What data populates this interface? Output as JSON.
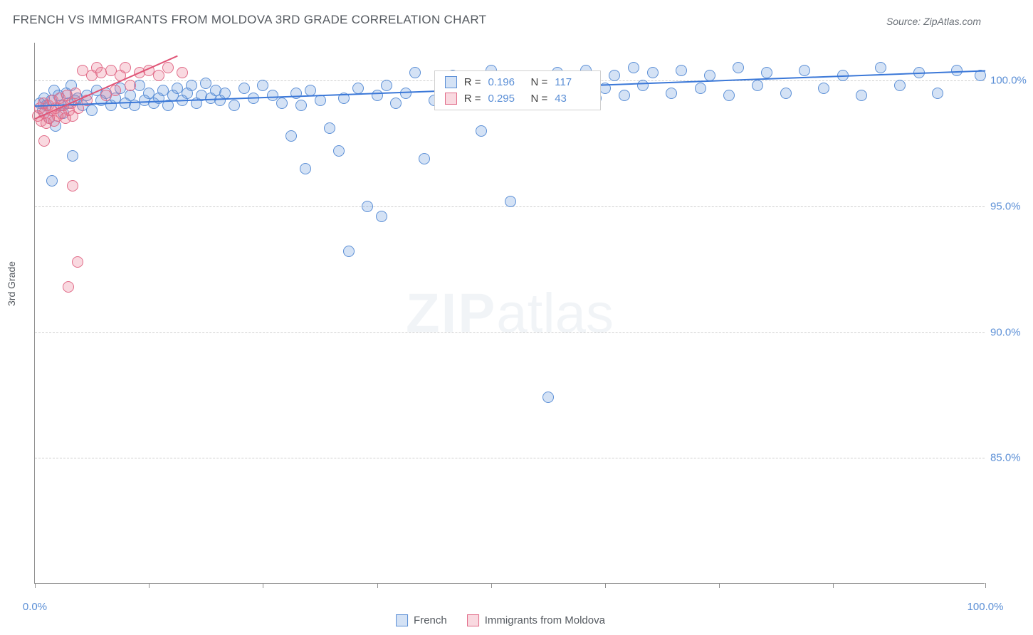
{
  "title": "FRENCH VS IMMIGRANTS FROM MOLDOVA 3RD GRADE CORRELATION CHART",
  "source_prefix": "Source: ",
  "source_name": "ZipAtlas.com",
  "ylabel": "3rd Grade",
  "watermark_bold": "ZIP",
  "watermark_rest": "atlas",
  "chart": {
    "type": "scatter",
    "xlim": [
      0,
      100
    ],
    "ylim": [
      80,
      101.5
    ],
    "yticks": [
      85.0,
      90.0,
      95.0,
      100.0
    ],
    "ytick_labels": [
      "85.0%",
      "90.0%",
      "95.0%",
      "100.0%"
    ],
    "xticks": [
      0,
      12,
      24,
      36,
      48,
      60,
      72,
      84,
      100
    ],
    "xtick_labels": {
      "0": "0.0%",
      "100": "100.0%"
    },
    "background_color": "#ffffff",
    "grid_color": "#cfcfcf",
    "axis_color": "#909090",
    "marker_radius": 8,
    "marker_stroke_width": 1.2,
    "series": [
      {
        "name": "French",
        "fill": "rgba(100,150,220,0.28)",
        "stroke": "#5b8fd6",
        "r_value": "0.196",
        "n_value": "117",
        "trend": {
          "x1": 0,
          "y1": 99.0,
          "x2": 100,
          "y2": 100.4,
          "color": "#3b78d8",
          "width": 2
        },
        "points": [
          [
            0.5,
            99.1
          ],
          [
            0.8,
            98.8
          ],
          [
            1.0,
            99.3
          ],
          [
            1.2,
            99.0
          ],
          [
            1.5,
            98.5
          ],
          [
            1.7,
            99.2
          ],
          [
            2.0,
            99.6
          ],
          [
            2.2,
            98.2
          ],
          [
            2.5,
            99.4
          ],
          [
            2.8,
            99.0
          ],
          [
            3.0,
            98.7
          ],
          [
            3.3,
            99.5
          ],
          [
            3.5,
            99.1
          ],
          [
            3.8,
            99.8
          ],
          [
            4.0,
            97.0
          ],
          [
            4.2,
            99.2
          ],
          [
            4.5,
            99.3
          ],
          [
            5.0,
            99.0
          ],
          [
            5.5,
            99.4
          ],
          [
            6.0,
            98.8
          ],
          [
            6.5,
            99.6
          ],
          [
            7.0,
            99.2
          ],
          [
            7.5,
            99.5
          ],
          [
            8.0,
            99.0
          ],
          [
            8.5,
            99.3
          ],
          [
            9.0,
            99.7
          ],
          [
            9.5,
            99.1
          ],
          [
            10.0,
            99.4
          ],
          [
            10.5,
            99.0
          ],
          [
            11.0,
            99.8
          ],
          [
            11.5,
            99.2
          ],
          [
            12.0,
            99.5
          ],
          [
            12.5,
            99.1
          ],
          [
            13.0,
            99.3
          ],
          [
            13.5,
            99.6
          ],
          [
            14.0,
            99.0
          ],
          [
            14.5,
            99.4
          ],
          [
            15.0,
            99.7
          ],
          [
            15.5,
            99.2
          ],
          [
            16.0,
            99.5
          ],
          [
            16.5,
            99.8
          ],
          [
            17.0,
            99.1
          ],
          [
            17.5,
            99.4
          ],
          [
            18.0,
            99.9
          ],
          [
            18.5,
            99.3
          ],
          [
            19.0,
            99.6
          ],
          [
            19.5,
            99.2
          ],
          [
            20.0,
            99.5
          ],
          [
            21.0,
            99.0
          ],
          [
            22.0,
            99.7
          ],
          [
            23.0,
            99.3
          ],
          [
            24.0,
            99.8
          ],
          [
            25.0,
            99.4
          ],
          [
            26.0,
            99.1
          ],
          [
            27.0,
            97.8
          ],
          [
            27.5,
            99.5
          ],
          [
            28.0,
            99.0
          ],
          [
            28.5,
            96.5
          ],
          [
            29.0,
            99.6
          ],
          [
            30.0,
            99.2
          ],
          [
            31.0,
            98.1
          ],
          [
            32.0,
            97.2
          ],
          [
            32.5,
            99.3
          ],
          [
            33.0,
            93.2
          ],
          [
            34.0,
            99.7
          ],
          [
            35.0,
            95.0
          ],
          [
            36.0,
            99.4
          ],
          [
            36.5,
            94.6
          ],
          [
            37.0,
            99.8
          ],
          [
            38.0,
            99.1
          ],
          [
            39.0,
            99.5
          ],
          [
            40.0,
            100.3
          ],
          [
            41.0,
            96.9
          ],
          [
            42.0,
            99.2
          ],
          [
            43.0,
            99.6
          ],
          [
            44.0,
            100.2
          ],
          [
            45.0,
            99.3
          ],
          [
            46.0,
            99.7
          ],
          [
            47.0,
            98.0
          ],
          [
            48.0,
            100.4
          ],
          [
            49.0,
            99.4
          ],
          [
            50.0,
            95.2
          ],
          [
            51.0,
            99.8
          ],
          [
            52.0,
            99.1
          ],
          [
            53.0,
            99.5
          ],
          [
            54.0,
            87.4
          ],
          [
            55.0,
            100.3
          ],
          [
            56.0,
            99.2
          ],
          [
            57.0,
            99.6
          ],
          [
            58.0,
            100.4
          ],
          [
            59.0,
            99.3
          ],
          [
            60.0,
            99.7
          ],
          [
            61.0,
            100.2
          ],
          [
            62.0,
            99.4
          ],
          [
            63.0,
            100.5
          ],
          [
            64.0,
            99.8
          ],
          [
            65.0,
            100.3
          ],
          [
            67.0,
            99.5
          ],
          [
            68.0,
            100.4
          ],
          [
            70.0,
            99.7
          ],
          [
            71.0,
            100.2
          ],
          [
            73.0,
            99.4
          ],
          [
            74.0,
            100.5
          ],
          [
            76.0,
            99.8
          ],
          [
            77.0,
            100.3
          ],
          [
            79.0,
            99.5
          ],
          [
            81.0,
            100.4
          ],
          [
            83.0,
            99.7
          ],
          [
            85.0,
            100.2
          ],
          [
            87.0,
            99.4
          ],
          [
            89.0,
            100.5
          ],
          [
            91.0,
            99.8
          ],
          [
            93.0,
            100.3
          ],
          [
            95.0,
            99.5
          ],
          [
            97.0,
            100.4
          ],
          [
            99.5,
            100.2
          ],
          [
            1.8,
            96.0
          ]
        ]
      },
      {
        "name": "Immigrants from Moldova",
        "fill": "rgba(235,120,145,0.28)",
        "stroke": "#e16b88",
        "r_value": "0.295",
        "n_value": "43",
        "trend": {
          "x1": 0,
          "y1": 98.5,
          "x2": 15,
          "y2": 101.0,
          "color": "#e05577",
          "width": 2
        },
        "points": [
          [
            0.3,
            98.6
          ],
          [
            0.5,
            98.9
          ],
          [
            0.7,
            98.4
          ],
          [
            0.9,
            99.1
          ],
          [
            1.0,
            98.7
          ],
          [
            1.2,
            98.3
          ],
          [
            1.4,
            99.0
          ],
          [
            1.5,
            98.5
          ],
          [
            1.7,
            98.8
          ],
          [
            1.9,
            99.2
          ],
          [
            2.0,
            98.4
          ],
          [
            2.2,
            98.9
          ],
          [
            2.4,
            98.6
          ],
          [
            2.6,
            99.3
          ],
          [
            2.8,
            98.7
          ],
          [
            3.0,
            99.0
          ],
          [
            3.2,
            98.5
          ],
          [
            3.4,
            99.4
          ],
          [
            3.6,
            98.8
          ],
          [
            3.8,
            99.1
          ],
          [
            4.0,
            98.6
          ],
          [
            4.3,
            99.5
          ],
          [
            4.6,
            98.9
          ],
          [
            5.0,
            100.4
          ],
          [
            5.5,
            99.2
          ],
          [
            6.0,
            100.2
          ],
          [
            6.5,
            100.5
          ],
          [
            7.0,
            100.3
          ],
          [
            7.5,
            99.4
          ],
          [
            8.0,
            100.4
          ],
          [
            8.5,
            99.6
          ],
          [
            9.0,
            100.2
          ],
          [
            9.5,
            100.5
          ],
          [
            10.0,
            99.8
          ],
          [
            11.0,
            100.3
          ],
          [
            12.0,
            100.4
          ],
          [
            13.0,
            100.2
          ],
          [
            14.0,
            100.5
          ],
          [
            15.5,
            100.3
          ],
          [
            3.5,
            91.8
          ],
          [
            4.5,
            92.8
          ],
          [
            4.0,
            95.8
          ],
          [
            1.0,
            97.6
          ]
        ]
      }
    ]
  },
  "legend_stats": {
    "r_label": "R =",
    "n_label": "N ="
  },
  "bottom_legend": {
    "items": [
      "French",
      "Immigrants from Moldova"
    ]
  }
}
